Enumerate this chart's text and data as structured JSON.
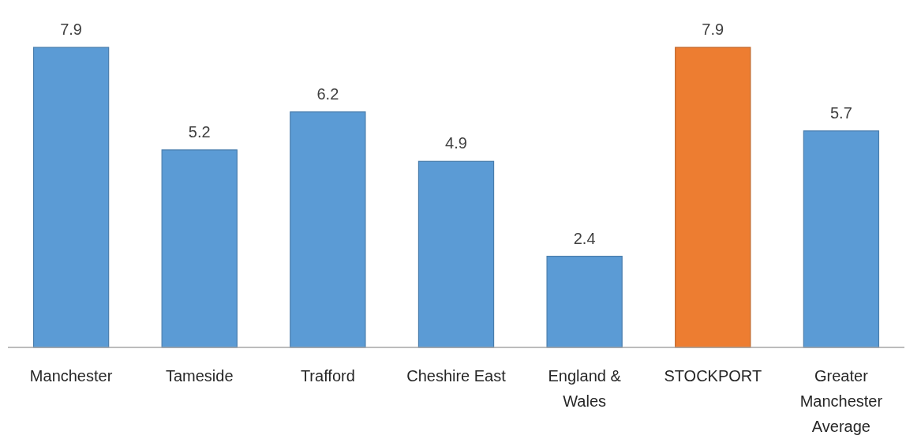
{
  "chart_data": {
    "type": "bar",
    "categories": [
      "Manchester",
      "Tameside",
      "Trafford",
      "Cheshire East",
      "England & Wales",
      "STOCKPORT",
      "Greater Manchester Average"
    ],
    "values": [
      7.9,
      5.2,
      6.2,
      4.9,
      2.4,
      7.9,
      5.7
    ],
    "colors": [
      "#5b9bd5",
      "#5b9bd5",
      "#5b9bd5",
      "#5b9bd5",
      "#5b9bd5",
      "#ed7d31",
      "#5b9bd5"
    ],
    "data_labels": true
  }
}
